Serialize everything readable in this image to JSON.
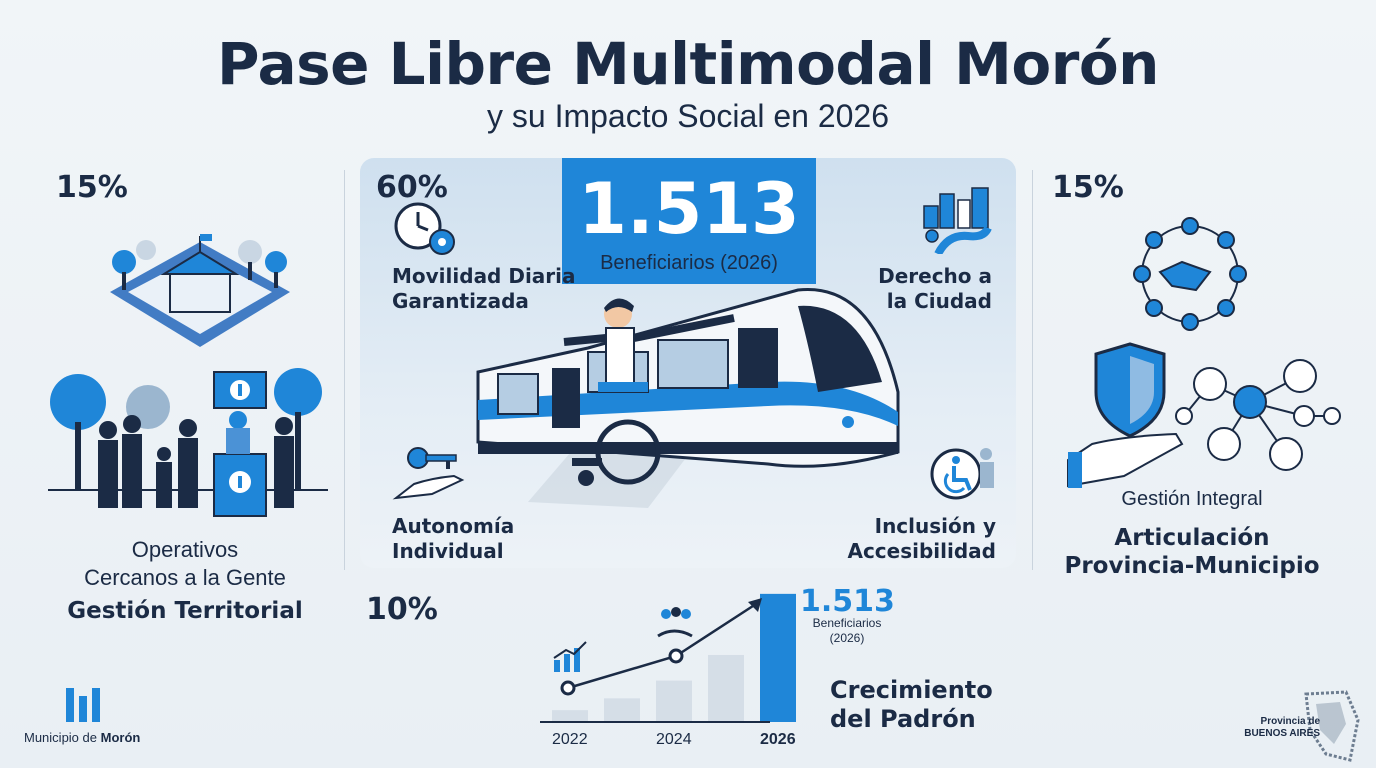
{
  "header": {
    "title": "Pase Libre Multimodal Morón",
    "subtitle": "y su Impacto Social en 2026"
  },
  "left": {
    "percent": "15%",
    "subtitle_line1": "Operativos",
    "subtitle_line2": "Cercanos a la Gente",
    "title": "Gestión Territorial"
  },
  "center": {
    "percent": "60%",
    "beneficiaries_number": "1.513",
    "beneficiaries_label": "Beneficiarios (2026)",
    "items": {
      "movilidad_line1": "Movilidad Diaria",
      "movilidad_line2": "Garantizada",
      "derecho_line1": "Derecho a",
      "derecho_line2": "la Ciudad",
      "autonomia_line1": "Autonomía",
      "autonomia_line2": "Individual",
      "inclusion_line1": "Inclusión y",
      "inclusion_line2": "Accesibilidad"
    }
  },
  "right": {
    "percent": "15%",
    "subtitle": "Gestión Integral",
    "title_line1": "Articulación",
    "title_line2": "Provincia-Municipio"
  },
  "bottom": {
    "percent": "10%",
    "chart_value": "1.513",
    "chart_value_label_line1": "Beneficiarios",
    "chart_value_label_line2": "(2026)",
    "growth_line1": "Crecimiento",
    "growth_line2": "del Padrón"
  },
  "chart_data": {
    "type": "bar",
    "categories": [
      "2022",
      "",
      "2024",
      "",
      "2026"
    ],
    "values": [
      12,
      24,
      42,
      68,
      130
    ],
    "highlight_index": 4,
    "ylim": [
      0,
      140
    ],
    "trend_points": [
      0,
      2
    ],
    "colors": {
      "bar": "#d5dee7",
      "highlight": "#1f86d8",
      "line": "#1b2b45"
    }
  },
  "footer": {
    "municipio_prefix": "Municipio de ",
    "municipio_name": "Morón",
    "provincia_line1": "Provincia de",
    "provincia_line2": "BUENOS AIRES"
  },
  "colors": {
    "accent": "#1f86d8",
    "dark": "#1b2b45",
    "background": "#eef3f7"
  }
}
